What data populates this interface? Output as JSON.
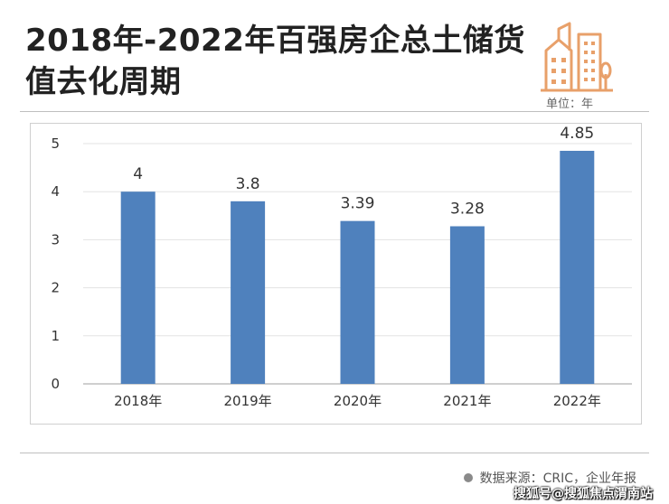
{
  "header": {
    "title": "2018年-2022年百强房企总土储货值去化周期",
    "unit": "单位：年",
    "logo_icon": "buildings-icon"
  },
  "colors": {
    "bar": "#4f81bd",
    "logo": "#e8a06a",
    "axis": "#bfbfbf"
  },
  "chart_data": {
    "type": "bar",
    "title": "2018年-2022年百强房企总土储货值去化周期",
    "categories": [
      "2018年",
      "2019年",
      "2020年",
      "2021年",
      "2022年"
    ],
    "values": [
      4,
      3.8,
      3.39,
      3.28,
      4.85
    ],
    "data_labels": [
      "4",
      "3.8",
      "3.39",
      "3.28",
      "4.85"
    ],
    "xlabel": "",
    "ylabel": "",
    "ylim": [
      0,
      5
    ],
    "yticks": [
      "0",
      "1",
      "2",
      "3",
      "4",
      "5"
    ],
    "grid": true,
    "legend": "none"
  },
  "footer": {
    "source": "数据来源：CRIC，企业年报",
    "watermark": "搜狐号@搜狐焦点渭南站"
  }
}
